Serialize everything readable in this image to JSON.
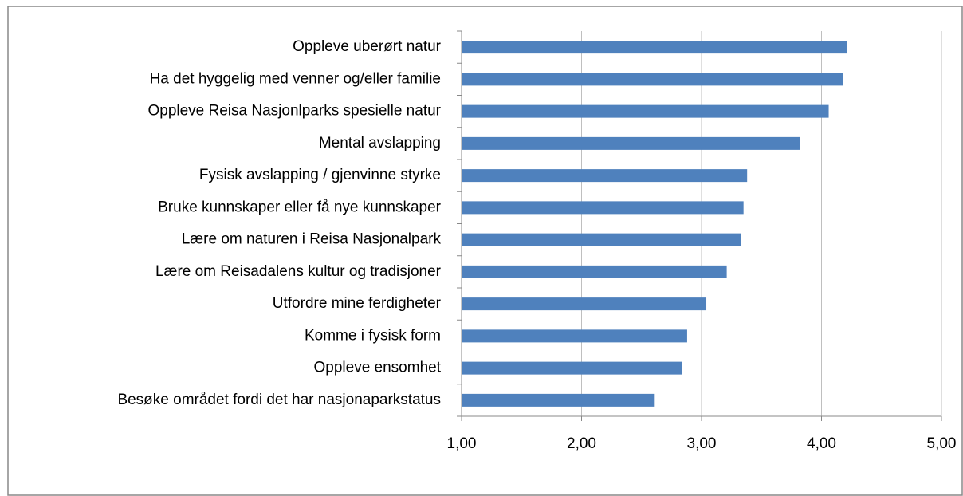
{
  "chart_data": {
    "type": "bar",
    "orientation": "horizontal",
    "categories": [
      "Oppleve uberørt natur",
      "Ha det hyggelig med venner og/eller familie",
      "Oppleve Reisa Nasjonlparks spesielle natur",
      "Mental avslapping",
      "Fysisk avslapping / gjenvinne styrke",
      "Bruke kunnskaper eller få nye kunnskaper",
      "Lære om naturen i Reisa Nasjonalpark",
      "Lære om Reisadalens kultur og tradisjoner",
      "Utfordre mine ferdigheter",
      "Komme i fysisk form",
      "Oppleve ensomhet",
      "Besøke området fordi det har nasjonaparkstatus"
    ],
    "values": [
      4.21,
      4.18,
      4.06,
      3.82,
      3.38,
      3.35,
      3.33,
      3.21,
      3.04,
      2.88,
      2.84,
      2.61
    ],
    "color": "#4f81bd",
    "xlim": [
      1,
      5
    ],
    "xticks": [
      {
        "value": 1,
        "label": "1,00"
      },
      {
        "value": 2,
        "label": "2,00"
      },
      {
        "value": 3,
        "label": "3,00"
      },
      {
        "value": 4,
        "label": "4,00"
      },
      {
        "value": 5,
        "label": "5,00"
      }
    ],
    "grid": true
  }
}
